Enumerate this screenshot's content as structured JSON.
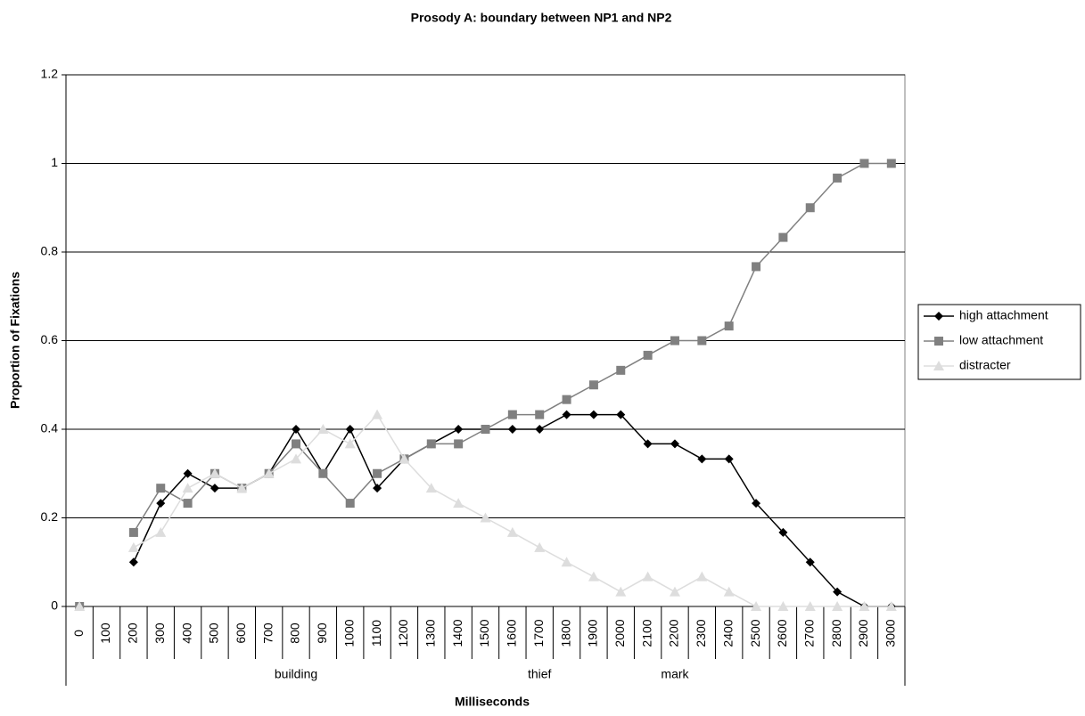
{
  "chart_data": {
    "type": "line",
    "title": "Prosody A: boundary between NP1 and NP2",
    "x_label": "Milliseconds",
    "y_label": "Proportion of Fixations",
    "categories": [
      "0",
      "100",
      "200",
      "300",
      "400",
      "500",
      "600",
      "700",
      "800",
      "900",
      "1000",
      "1100",
      "1200",
      "1300",
      "1400",
      "1500",
      "1600",
      "1700",
      "1800",
      "1900",
      "2000",
      "2100",
      "2200",
      "2300",
      "2400",
      "2500",
      "2600",
      "2700",
      "2800",
      "2900",
      "3000"
    ],
    "group_labels": [
      {
        "text": "building",
        "category": 8
      },
      {
        "text": "thief",
        "category": 17
      },
      {
        "text": "mark",
        "category": 22
      }
    ],
    "series": [
      {
        "name": "high attachment",
        "color": "#000000",
        "marker": "diamond",
        "values": [
          0,
          null,
          0.1,
          0.233,
          0.3,
          0.267,
          0.267,
          0.3,
          0.4,
          0.3,
          0.4,
          0.267,
          0.333,
          0.367,
          0.4,
          0.4,
          0.4,
          0.4,
          0.433,
          0.433,
          0.433,
          0.367,
          0.367,
          0.333,
          0.333,
          0.233,
          0.167,
          0.1,
          0.033,
          0,
          0
        ]
      },
      {
        "name": "low attachment",
        "color": "#808080",
        "marker": "square",
        "values": [
          0,
          null,
          0.167,
          0.267,
          0.233,
          0.3,
          0.267,
          0.3,
          0.367,
          0.3,
          0.233,
          0.3,
          0.333,
          0.367,
          0.367,
          0.4,
          0.433,
          0.433,
          0.467,
          0.5,
          0.533,
          0.567,
          0.6,
          0.6,
          0.633,
          0.767,
          0.833,
          0.9,
          0.967,
          1,
          1
        ]
      },
      {
        "name": "distracter",
        "color": "#dddddd",
        "marker": "triangle",
        "values": [
          0,
          null,
          0.133,
          0.167,
          0.267,
          0.3,
          0.267,
          0.3,
          0.333,
          0.4,
          0.367,
          0.433,
          0.333,
          0.267,
          0.233,
          0.2,
          0.167,
          0.133,
          0.1,
          0.067,
          0.033,
          0.067,
          0.033,
          0.067,
          0.033,
          0,
          0,
          0,
          0,
          0,
          0
        ]
      }
    ],
    "ylim": [
      0,
      1.2
    ],
    "yticks": [
      0,
      0.2,
      0.4,
      0.6,
      0.8,
      1,
      1.2
    ],
    "grid": true,
    "legend": "right"
  }
}
